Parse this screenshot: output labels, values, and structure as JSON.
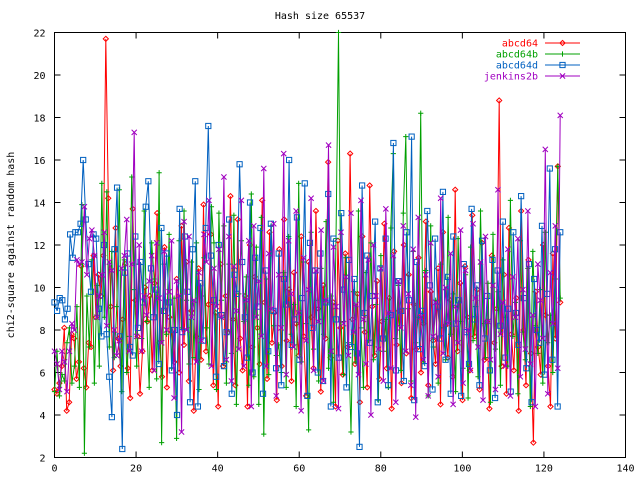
{
  "chart_data": {
    "type": "line",
    "title": "Hash size 65537",
    "xlabel": "",
    "ylabel": "chi2-square against random hash",
    "xlim": [
      0,
      140
    ],
    "ylim": [
      2,
      22
    ],
    "x_ticks": [
      0,
      20,
      40,
      60,
      80,
      100,
      120,
      140
    ],
    "y_ticks": [
      2,
      4,
      6,
      8,
      10,
      12,
      14,
      16,
      18,
      20,
      22
    ],
    "grid": false,
    "legend_position": "top-right",
    "series": [
      {
        "name": "abcd64",
        "color": "#ff0000",
        "marker": "diamond",
        "values": [
          5.2,
          5.0,
          5.5,
          6.3,
          8.1,
          4.2,
          4.6,
          7.8,
          7.6,
          5.7,
          6.5,
          11.0,
          6.2,
          5.3,
          7.4,
          7.2,
          11.5,
          8.6,
          10.6,
          9.6,
          11.5,
          21.7,
          14.2,
          9.1,
          6.1,
          12.8,
          7.6,
          6.3,
          8.5,
          11.1,
          6.2,
          4.8,
          13.7,
          9.4,
          7.7,
          5.0,
          7.0,
          10.0,
          8.4,
          9.6,
          6.1,
          10.2,
          13.5,
          7.4,
          5.8,
          11.9,
          5.3,
          8.6,
          7.9,
          6.5,
          10.4,
          6.0,
          12.9,
          7.3,
          11.2,
          5.6,
          8.9,
          4.2,
          7.7,
          10.9,
          6.6,
          13.9,
          7.0,
          9.2,
          12.5,
          5.4,
          8.8,
          4.4,
          11.1,
          6.3,
          9.6,
          7.9,
          14.3,
          8.5,
          5.4,
          13.2,
          7.6,
          6.1,
          9.6,
          4.4,
          12.0,
          7.2,
          10.5,
          8.1,
          6.4,
          14.1,
          9.3,
          5.7,
          12.6,
          7.4,
          8.8,
          4.7,
          11.8,
          6.3,
          13.2,
          7.5,
          9.9,
          5.6,
          10.7,
          8.3,
          6.8,
          12.4,
          7.7,
          4.9,
          11.2,
          8.6,
          6.2,
          13.6,
          9.0,
          5.1,
          10.1,
          7.6,
          15.9,
          6.7,
          9.3,
          4.4,
          12.2,
          8.1,
          5.9,
          11.6,
          7.2,
          16.3,
          8.5,
          6.4,
          9.7,
          4.6,
          12.4,
          7.9,
          5.3,
          14.8,
          9.1,
          6.8,
          10.3,
          5.7,
          8.4,
          13.0,
          6.2,
          9.5,
          4.3,
          11.7,
          7.3,
          8.9,
          5.5,
          12.0,
          6.9,
          10.6,
          4.8,
          9.2,
          7.1,
          11.4,
          6.0,
          8.3,
          13.1,
          5.4,
          9.8,
          7.5,
          6.4,
          10.9,
          4.5,
          12.6,
          8.2,
          6.7,
          9.4,
          5.8,
          14.6,
          7.0,
          10.2,
          4.7,
          11.0,
          8.6,
          6.1,
          13.4,
          7.7,
          9.9,
          5.2,
          12.1,
          6.6,
          8.4,
          4.3,
          11.5,
          7.4,
          9.0,
          18.8,
          6.3,
          10.6,
          5.0,
          12.8,
          7.8,
          6.1,
          9.5,
          4.2,
          13.6,
          8.0,
          5.4,
          11.3,
          6.9,
          2.7,
          9.8,
          7.2,
          5.9,
          12.0,
          8.7,
          6.3,
          4.4,
          11.6,
          7.6,
          15.7,
          9.3
        ]
      },
      {
        "name": "abcd64b",
        "color": "#00a000",
        "marker": "plus",
        "values": [
          5.1,
          7.0,
          4.9,
          5.9,
          5.6,
          7.4,
          8.1,
          5.5,
          6.3,
          9.1,
          5.3,
          13.9,
          2.2,
          9.6,
          7.2,
          11.3,
          5.5,
          10.1,
          6.3,
          14.9,
          8.6,
          14.5,
          7.2,
          11.7,
          6.7,
          9.1,
          14.6,
          5.1,
          11.3,
          6.0,
          7.7,
          15.2,
          9.9,
          6.3,
          11.1,
          7.6,
          13.6,
          8.4,
          5.3,
          12.1,
          10.4,
          5.7,
          15.4,
          2.7,
          11.1,
          7.8,
          12.5,
          6.2,
          9.5,
          2.9,
          12.2,
          8.1,
          13.6,
          9.4,
          6.4,
          11.2,
          6.7,
          12.1,
          5.2,
          9.6,
          11.4,
          8.1,
          6.4,
          13.8,
          12.1,
          5.2,
          13.5,
          9.4,
          12.9,
          5.5,
          11.1,
          6.9,
          13.4,
          4.5,
          9.7,
          12.2,
          8.4,
          10.5,
          5.4,
          14.4,
          5.8,
          11.9,
          4.5,
          13.3,
          3.1,
          10.4,
          5.9,
          12.9,
          8.2,
          6.8,
          7.3,
          6.0,
          10.7,
          5.3,
          12.4,
          7.8,
          9.2,
          4.4,
          14.9,
          6.5,
          11.2,
          8.3,
          3.3,
          12.6,
          7.1,
          9.4,
          5.6,
          10.9,
          7.8,
          13.1,
          6.2,
          9.6,
          4.6,
          12.3,
          22.0,
          8.4,
          5.9,
          11.4,
          7.4,
          3.2,
          9.8,
          6.5,
          13.6,
          8.1,
          5.3,
          10.7,
          7.5,
          12.1,
          6.6,
          9.2,
          4.7,
          11.5,
          7.0,
          8.5,
          5.3,
          12.8,
          16.3,
          7.6,
          10.1,
          6.1,
          13.5,
          17.1,
          9.0,
          5.6,
          11.7,
          7.4,
          8.6,
          18.2,
          6.5,
          10.8,
          4.9,
          12.9,
          7.2,
          9.4,
          5.5,
          11.1,
          8.1,
          6.6,
          13.3,
          7.8,
          9.7,
          5.1,
          12.3,
          8.4,
          6.2,
          10.6,
          4.8,
          11.9,
          7.5,
          9.1,
          5.8,
          13.6,
          8.3,
          6.7,
          10.2,
          4.6,
          12.5,
          7.1,
          9.8,
          5.4,
          11.3,
          8.6,
          6.3,
          14.1,
          7.7,
          9.3,
          5.0,
          12.2,
          7.9,
          6.6,
          10.9,
          4.4,
          11.7,
          8.2,
          6.9,
          9.9,
          5.5,
          12.6,
          7.4,
          8.7,
          6.0,
          10.4,
          15.7,
          9.5
        ]
      },
      {
        "name": "abcd64d",
        "color": "#0060c0",
        "marker": "square",
        "values": [
          9.3,
          8.9,
          9.5,
          9.4,
          8.5,
          9.0,
          12.5,
          11.4,
          12.6,
          12.6,
          13.0,
          16.0,
          13.2,
          11.1,
          9.8,
          12.5,
          12.3,
          9.0,
          7.7,
          12.0,
          7.8,
          5.8,
          3.9,
          11.8,
          14.7,
          7.7,
          2.4,
          10.7,
          11.6,
          7.2,
          6.8,
          12.4,
          8.1,
          11.2,
          9.3,
          13.8,
          15.0,
          10.9,
          8.6,
          9.9,
          6.4,
          12.8,
          8.9,
          11.6,
          9.3,
          6.1,
          8.0,
          4.0,
          13.7,
          7.9,
          12.4,
          9.8,
          4.6,
          11.8,
          15.0,
          4.4,
          10.2,
          7.5,
          12.8,
          17.6,
          11.5,
          9.4,
          5.8,
          12.0,
          8.7,
          6.3,
          7.9,
          13.2,
          5.0,
          10.6,
          9.7,
          15.8,
          11.2,
          8.6,
          6.7,
          14.0,
          6.0,
          11.4,
          9.1,
          12.8,
          5.0,
          10.8,
          7.0,
          13.0,
          8.9,
          6.2,
          11.6,
          5.4,
          10.4,
          9.2,
          16.0,
          7.3,
          8.5,
          13.3,
          6.6,
          9.5,
          14.9,
          4.9,
          12.1,
          8.1,
          10.8,
          6.0,
          11.6,
          5.6,
          9.3,
          14.4,
          4.4,
          12.3,
          8.5,
          6.7,
          13.5,
          9.9,
          5.3,
          11.3,
          7.2,
          10.4,
          6.9,
          2.5,
          14.8,
          8.8,
          11.5,
          7.4,
          9.6,
          13.1,
          4.6,
          10.9,
          7.6,
          12.3,
          5.4,
          8.7,
          16.8,
          6.1,
          10.3,
          8.9,
          5.6,
          12.6,
          9.4,
          17.1,
          4.7,
          11.2,
          7.1,
          8.9,
          6.3,
          13.6,
          10.1,
          5.2,
          12.3,
          9.1,
          7.6,
          14.5,
          6.6,
          10.5,
          5.0,
          12.4,
          8.3,
          9.4,
          4.9,
          11.1,
          7.9,
          6.4,
          13.7,
          8.5,
          10.1,
          5.4,
          12.2,
          7.6,
          9.6,
          6.1,
          11.3,
          4.8,
          10.8,
          8.2,
          13.1,
          6.7,
          9.0,
          5.1,
          12.6,
          8.8,
          7.3,
          14.3,
          9.5,
          6.2,
          11.1,
          4.6,
          10.4,
          8.0,
          7.4,
          12.9,
          5.9,
          9.7,
          15.6,
          6.6,
          11.8,
          4.4,
          12.6
        ]
      },
      {
        "name": "jenkins2b",
        "color": "#a000c0",
        "marker": "cross",
        "values": [
          7.0,
          6.4,
          5.2,
          7.0,
          6.5,
          5.1,
          7.0,
          8.3,
          8.0,
          11.3,
          11.1,
          11.2,
          13.8,
          10.6,
          12.3,
          12.7,
          11.5,
          8.6,
          9.6,
          10.6,
          12.6,
          8.2,
          11.2,
          10.8,
          8.0,
          6.8,
          7.5,
          10.9,
          11.5,
          13.2,
          7.0,
          11.1,
          17.3,
          7.7,
          12.0,
          7.0,
          9.6,
          8.7,
          10.3,
          11.5,
          6.1,
          12.1,
          9.5,
          7.4,
          11.7,
          8.0,
          9.8,
          12.2,
          4.8,
          10.3,
          9.6,
          3.2,
          13.1,
          8.0,
          12.4,
          8.6,
          9.4,
          6.5,
          10.7,
          7.5,
          12.5,
          11.2,
          14.1,
          6.3,
          10.9,
          9.1,
          11.8,
          8.6,
          15.2,
          6.6,
          12.4,
          5.6,
          11.0,
          8.9,
          7.1,
          14.1,
          6.3,
          9.4,
          12.2,
          4.4,
          12.9,
          8.6,
          10.3,
          7.7,
          15.6,
          6.3,
          11.6,
          9.0,
          13.0,
          4.9,
          10.6,
          8.1,
          16.3,
          5.9,
          12.2,
          9.7,
          7.2,
          13.6,
          8.8,
          4.2,
          11.4,
          7.5,
          9.9,
          14.2,
          6.1,
          10.8,
          8.4,
          12.7,
          5.6,
          9.4,
          16.7,
          7.0,
          11.9,
          9.1,
          4.3,
          12.6,
          8.3,
          10.5,
          6.8,
          13.5,
          7.9,
          9.2,
          5.9,
          14.1,
          8.5,
          6.4,
          11.3,
          4.0,
          12.0,
          9.6,
          7.1,
          10.9,
          5.6,
          13.7,
          8.8,
          6.2,
          11.5,
          4.6,
          10.3,
          8.1,
          12.9,
          7.0,
          9.7,
          5.4,
          11.8,
          3.9,
          13.3,
          8.6,
          6.6,
          10.6,
          4.9,
          12.1,
          7.7,
          9.3,
          5.8,
          14.2,
          6.9,
          10.0,
          8.3,
          11.6,
          4.5,
          9.1,
          7.4,
          12.7,
          5.5,
          10.8,
          8.0,
          6.1,
          13.0,
          9.5,
          7.2,
          11.2,
          4.7,
          12.4,
          8.4,
          6.6,
          10.1,
          5.2,
          14.6,
          7.8,
          9.3,
          6.3,
          11.8,
          4.9,
          10.5,
          8.6,
          12.3,
          5.8,
          9.9,
          7.1,
          13.6,
          6.4,
          8.7,
          4.4,
          11.1,
          9.4,
          7.6,
          16.5,
          5.0,
          10.7,
          8.3,
          12.9,
          6.2,
          18.1
        ]
      }
    ]
  }
}
